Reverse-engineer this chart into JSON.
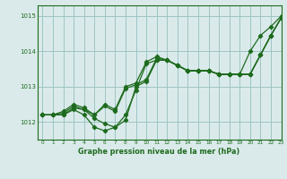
{
  "background_color": "#daeaea",
  "grid_color": "#9ec4c4",
  "line_color": "#1e6b1e",
  "title": "Graphe pression niveau de la mer (hPa)",
  "xlim": [
    -0.5,
    23
  ],
  "ylim": [
    1011.5,
    1015.3
  ],
  "yticks": [
    1012,
    1013,
    1014,
    1015
  ],
  "xticks": [
    0,
    1,
    2,
    3,
    4,
    5,
    6,
    7,
    8,
    9,
    10,
    11,
    12,
    13,
    14,
    15,
    16,
    17,
    18,
    19,
    20,
    21,
    22,
    23
  ],
  "series": [
    [
      1012.2,
      1012.2,
      1012.2,
      1012.4,
      1012.35,
      1012.1,
      1011.95,
      1011.85,
      1012.05,
      1013.0,
      1013.15,
      1013.75,
      1013.75,
      1013.6,
      1013.45,
      1013.45,
      1013.45,
      1013.35,
      1013.35,
      1013.35,
      1013.35,
      1013.9,
      1014.45,
      1014.95
    ],
    [
      1012.2,
      1012.2,
      1012.2,
      1012.35,
      1012.2,
      1011.85,
      1011.75,
      1011.85,
      1012.2,
      1012.9,
      1013.65,
      1013.75,
      1013.75,
      1013.6,
      1013.45,
      1013.45,
      1013.45,
      1013.35,
      1013.35,
      1013.35,
      1013.35,
      1013.9,
      1014.45,
      1014.95
    ],
    [
      1012.2,
      1012.2,
      1012.25,
      1012.45,
      1012.35,
      1012.2,
      1012.45,
      1012.3,
      1012.95,
      1013.05,
      1013.2,
      1013.8,
      1013.75,
      1013.6,
      1013.45,
      1013.45,
      1013.45,
      1013.35,
      1013.35,
      1013.35,
      1013.35,
      1013.9,
      1014.45,
      1014.95
    ],
    [
      1012.2,
      1012.2,
      1012.3,
      1012.5,
      1012.4,
      1012.2,
      1012.5,
      1012.35,
      1013.0,
      1013.1,
      1013.7,
      1013.85,
      1013.75,
      1013.6,
      1013.45,
      1013.45,
      1013.45,
      1013.35,
      1013.35,
      1013.35,
      1014.0,
      1014.45,
      1014.7,
      1015.0
    ]
  ]
}
